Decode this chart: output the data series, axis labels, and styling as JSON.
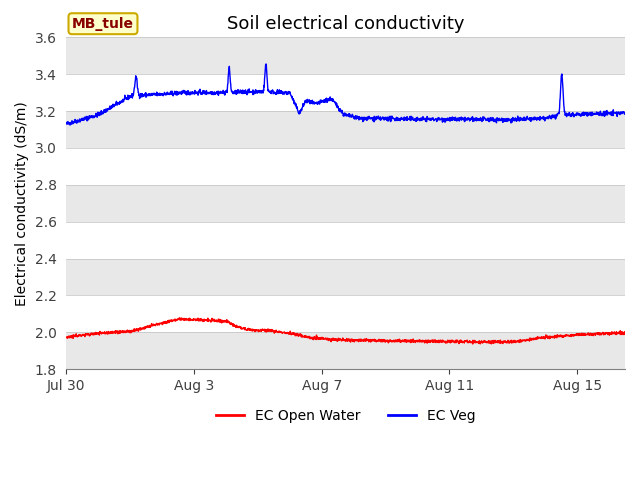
{
  "title": "Soil electrical conductivity",
  "ylabel": "Electrical conductivity (dS/m)",
  "xlabel": "",
  "ylim": [
    1.8,
    3.6
  ],
  "yticks": [
    1.8,
    2.0,
    2.2,
    2.4,
    2.6,
    2.8,
    3.0,
    3.2,
    3.4,
    3.6
  ],
  "xtick_labels": [
    "Jul 30",
    "Aug 3",
    "Aug 7",
    "Aug 11",
    "Aug 15"
  ],
  "xtick_positions": [
    0,
    4,
    8,
    12,
    16
  ],
  "fig_bg_color": "#ffffff",
  "plot_bg_color": "#ffffff",
  "band_color_dark": "#e8e8e8",
  "band_color_light": "#ffffff",
  "line_color_ow": "#ff0000",
  "line_color_veg": "#0000ff",
  "legend_label_ow": "EC Open Water",
  "legend_label_veg": "EC Veg",
  "box_label": "MB_tule",
  "box_facecolor": "#ffffcc",
  "box_edgecolor": "#ccaa00",
  "box_text_color": "#880000",
  "grid_color": "#d0d0d0",
  "n_points": 2000,
  "start_day": 0,
  "end_day": 17.5,
  "title_fontsize": 13,
  "tick_fontsize": 10,
  "ylabel_fontsize": 10
}
